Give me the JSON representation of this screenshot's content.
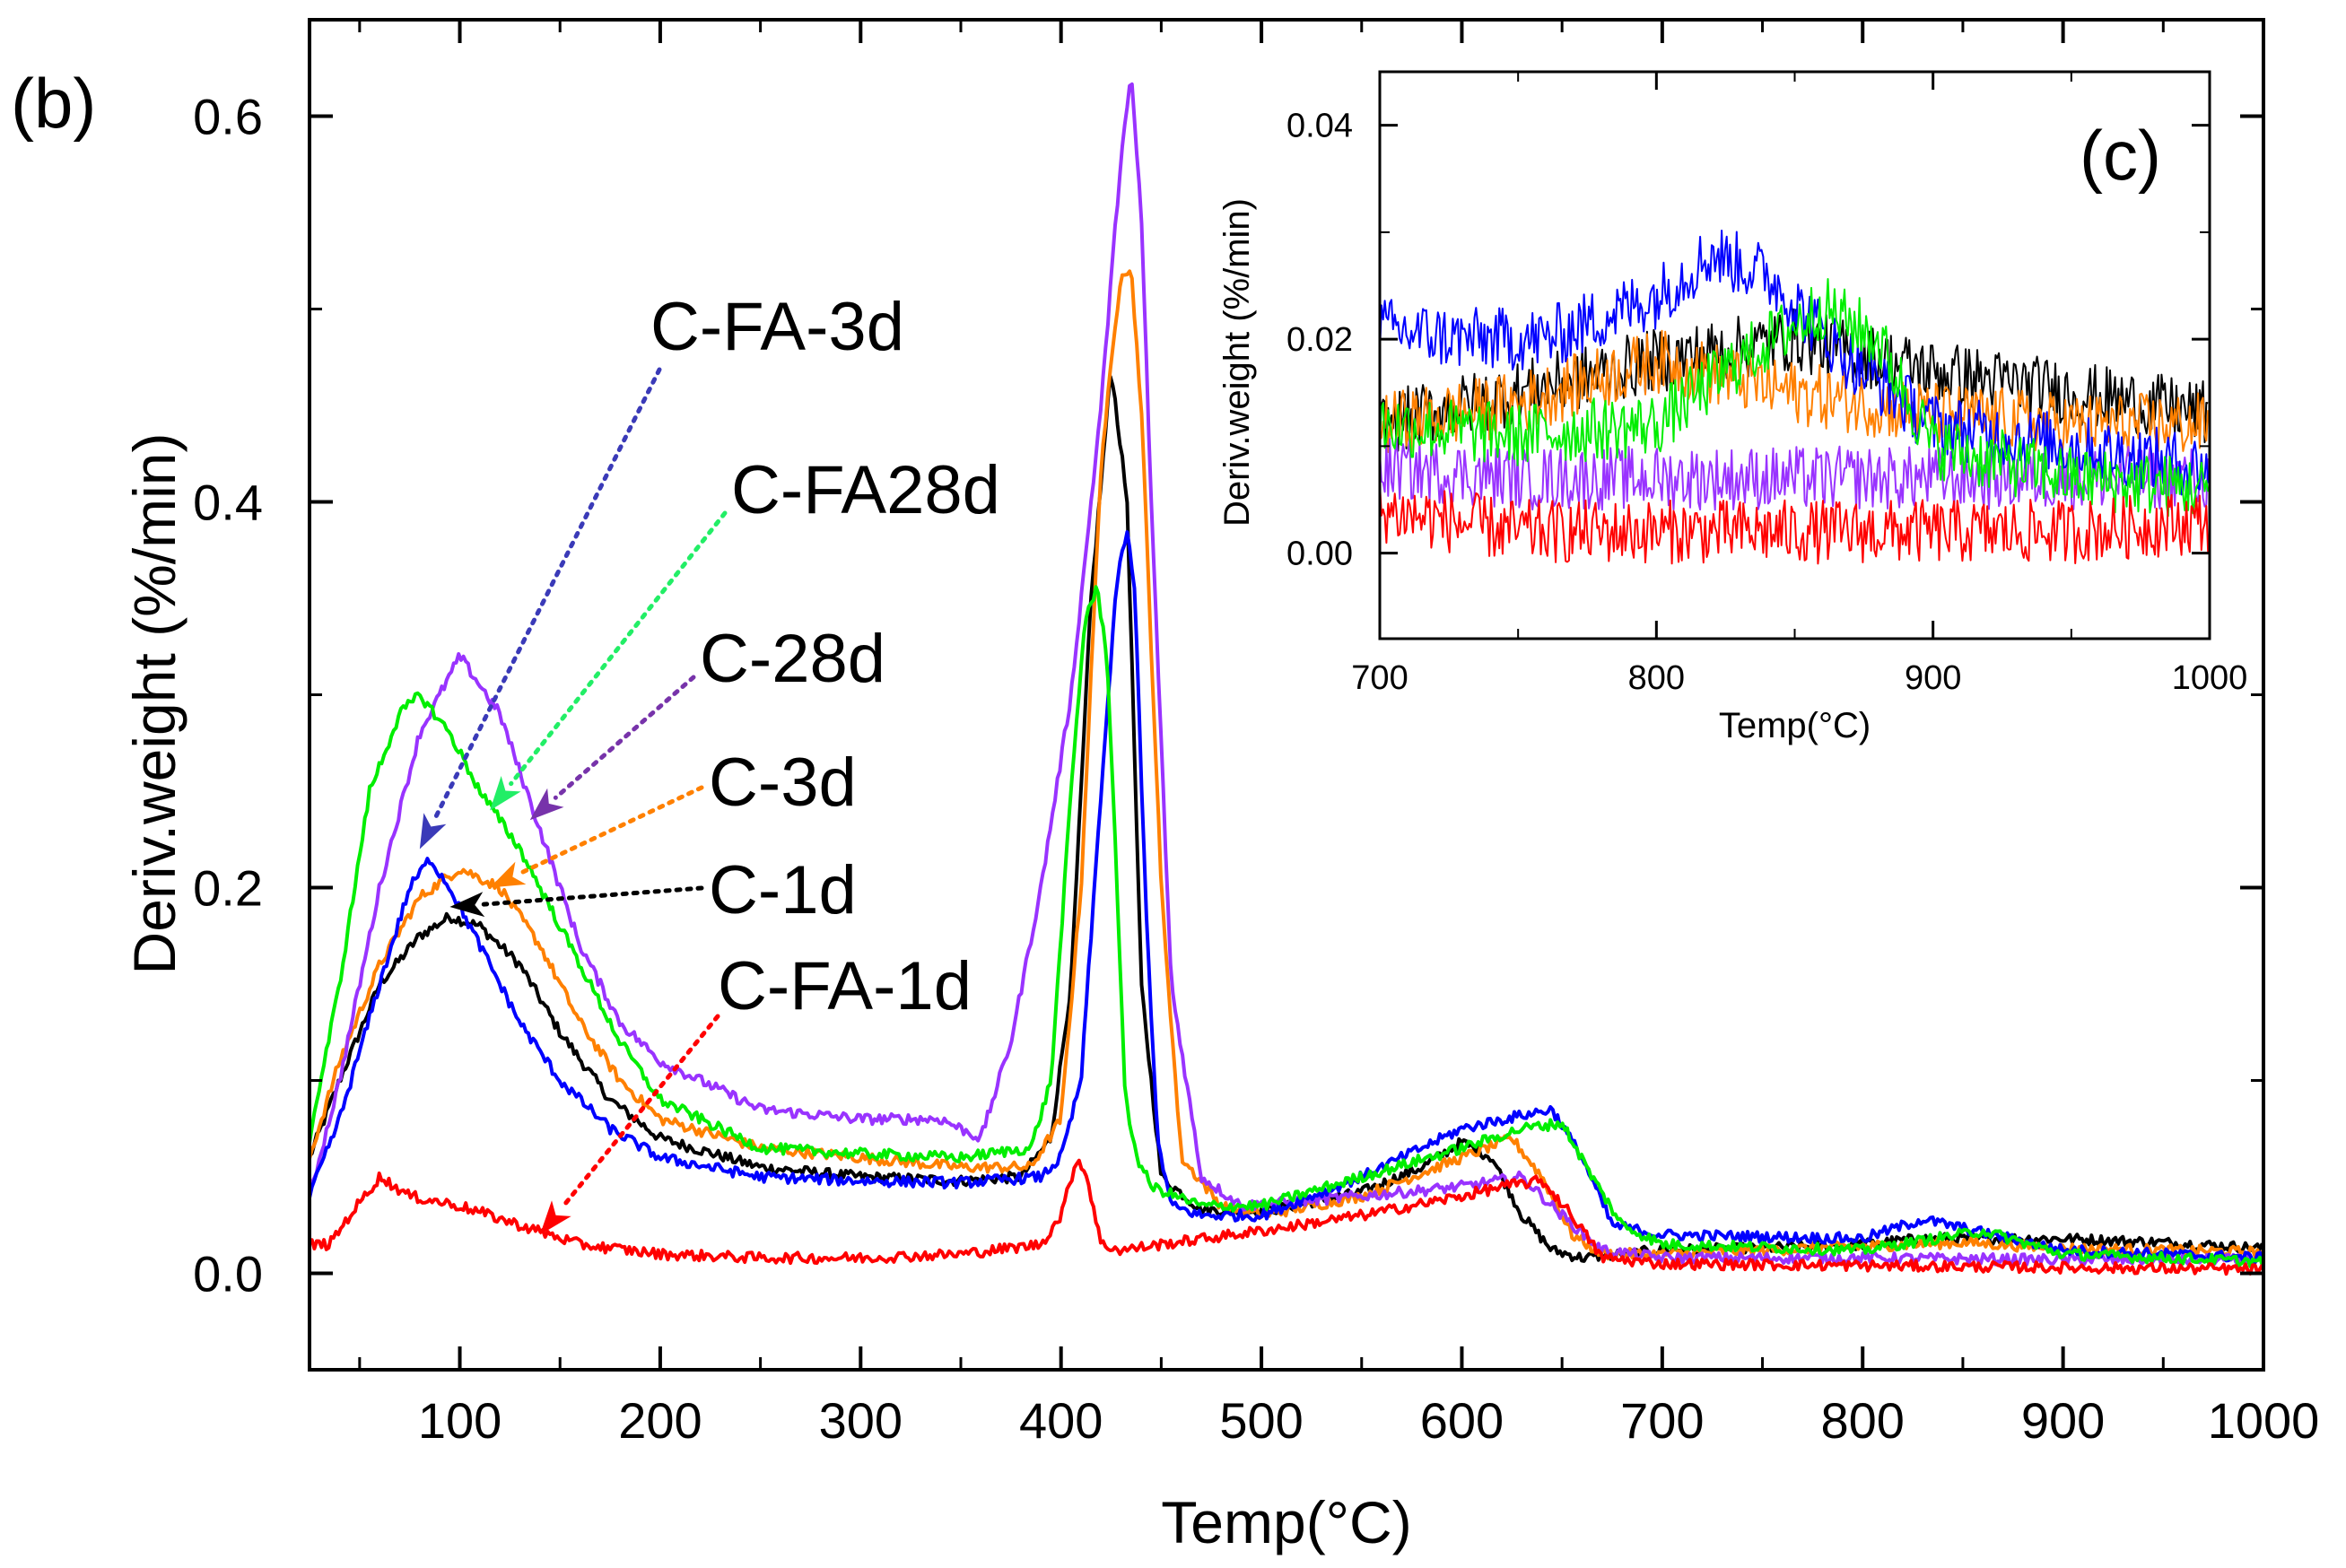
{
  "chart_data": [
    {
      "panel": "(b)",
      "type": "line",
      "xlabel": "Temp(°C)",
      "ylabel": "Deriv.weight (%/min)",
      "xlim": [
        25,
        1000
      ],
      "ylim": [
        -0.05,
        0.65
      ],
      "xticks": [
        100,
        200,
        300,
        400,
        500,
        600,
        700,
        800,
        900,
        1000
      ],
      "yticks": [
        0.0,
        0.2,
        0.4,
        0.6
      ],
      "ytick_labels": [
        "0.0",
        "0.2",
        "0.4",
        "0.6"
      ],
      "grid": false,
      "series": [
        {
          "name": "C-1d",
          "color": "#000000",
          "x": [
            25,
            40,
            60,
            80,
            95,
            110,
            130,
            150,
            175,
            200,
            250,
            300,
            350,
            380,
            395,
            405,
            415,
            425,
            433,
            440,
            450,
            470,
            500,
            550,
            580,
            600,
            615,
            630,
            645,
            660,
            680,
            700,
            750,
            800,
            830,
            900,
            950,
            1000
          ],
          "y": [
            0.06,
            0.1,
            0.15,
            0.175,
            0.185,
            0.18,
            0.16,
            0.125,
            0.09,
            0.07,
            0.055,
            0.05,
            0.048,
            0.05,
            0.07,
            0.15,
            0.35,
            0.47,
            0.4,
            0.15,
            0.05,
            0.033,
            0.032,
            0.042,
            0.055,
            0.068,
            0.06,
            0.03,
            0.012,
            0.008,
            0.01,
            0.012,
            0.013,
            0.015,
            0.018,
            0.018,
            0.016,
            0.013
          ]
        },
        {
          "name": "C-3d",
          "color": "#ff8000",
          "x": [
            25,
            40,
            60,
            80,
            100,
            120,
            140,
            160,
            180,
            200,
            250,
            300,
            350,
            385,
            400,
            410,
            420,
            430,
            435,
            440,
            450,
            460,
            480,
            500,
            550,
            600,
            625,
            640,
            655,
            670,
            700,
            750,
            800,
            850,
            900,
            950,
            1000
          ],
          "y": [
            0.06,
            0.11,
            0.16,
            0.195,
            0.21,
            0.2,
            0.17,
            0.13,
            0.1,
            0.08,
            0.065,
            0.06,
            0.055,
            0.055,
            0.08,
            0.2,
            0.42,
            0.52,
            0.52,
            0.45,
            0.2,
            0.06,
            0.035,
            0.03,
            0.04,
            0.06,
            0.07,
            0.05,
            0.02,
            0.01,
            0.01,
            0.012,
            0.014,
            0.016,
            0.013,
            0.012,
            0.011
          ]
        },
        {
          "name": "C-28d",
          "color": "#9933ff",
          "x": [
            25,
            40,
            60,
            80,
            100,
            120,
            140,
            160,
            180,
            200,
            250,
            300,
            340,
            360,
            375,
            390,
            405,
            420,
            430,
            435,
            440,
            445,
            455,
            470,
            490,
            550,
            600,
            630,
            650,
            670,
            700,
            800,
            900,
            1000
          ],
          "y": [
            0.04,
            0.1,
            0.2,
            0.28,
            0.32,
            0.29,
            0.23,
            0.17,
            0.13,
            0.11,
            0.085,
            0.08,
            0.08,
            0.07,
            0.12,
            0.2,
            0.3,
            0.45,
            0.58,
            0.62,
            0.55,
            0.4,
            0.15,
            0.05,
            0.035,
            0.04,
            0.045,
            0.05,
            0.03,
            0.012,
            0.008,
            0.008,
            0.007,
            0.007
          ]
        },
        {
          "name": "C-FA-3d",
          "color": "#0000ff",
          "x": [
            25,
            40,
            60,
            75,
            85,
            95,
            110,
            130,
            150,
            175,
            200,
            250,
            300,
            350,
            390,
            400,
            410,
            420,
            428,
            433,
            437,
            442,
            448,
            455,
            470,
            500,
            550,
            600,
            630,
            645,
            660,
            675,
            700,
            800,
            830,
            900,
            1000
          ],
          "y": [
            0.04,
            0.08,
            0.15,
            0.2,
            0.215,
            0.2,
            0.17,
            0.13,
            0.1,
            0.075,
            0.06,
            0.05,
            0.048,
            0.047,
            0.05,
            0.06,
            0.1,
            0.25,
            0.36,
            0.385,
            0.35,
            0.2,
            0.07,
            0.035,
            0.03,
            0.03,
            0.05,
            0.075,
            0.082,
            0.085,
            0.06,
            0.025,
            0.02,
            0.018,
            0.028,
            0.012,
            0.008
          ]
        },
        {
          "name": "C-FA28d",
          "color": "#00ee00",
          "x": [
            25,
            40,
            55,
            70,
            80,
            95,
            110,
            130,
            150,
            180,
            200,
            250,
            300,
            350,
            385,
            395,
            405,
            412,
            418,
            423,
            428,
            432,
            438,
            445,
            470,
            500,
            550,
            600,
            630,
            650,
            665,
            680,
            700,
            800,
            860,
            900,
            1000
          ],
          "y": [
            0.07,
            0.15,
            0.25,
            0.29,
            0.3,
            0.28,
            0.25,
            0.22,
            0.18,
            0.12,
            0.09,
            0.065,
            0.062,
            0.06,
            0.065,
            0.1,
            0.25,
            0.34,
            0.355,
            0.32,
            0.2,
            0.09,
            0.06,
            0.045,
            0.035,
            0.035,
            0.05,
            0.065,
            0.075,
            0.078,
            0.05,
            0.025,
            0.015,
            0.012,
            0.022,
            0.01,
            0.006
          ]
        },
        {
          "name": "C-FA-1d",
          "color": "#ff0000",
          "x": [
            25,
            35,
            45,
            60,
            75,
            100,
            130,
            160,
            200,
            250,
            300,
            350,
            390,
            400,
            408,
            413,
            420,
            430,
            450,
            500,
            550,
            600,
            620,
            640,
            655,
            670,
            700,
            800,
            900,
            1000
          ],
          "y": [
            0.015,
            0.015,
            0.03,
            0.05,
            0.04,
            0.035,
            0.025,
            0.015,
            0.01,
            0.008,
            0.008,
            0.01,
            0.015,
            0.03,
            0.06,
            0.05,
            0.015,
            0.012,
            0.015,
            0.022,
            0.03,
            0.04,
            0.045,
            0.048,
            0.03,
            0.008,
            0.005,
            0.004,
            0.003,
            0.002
          ]
        }
      ],
      "annotations": [
        {
          "label": "C-FA-3d",
          "color": "#3a3ab8",
          "arrow_to": [
            80,
            0.22
          ]
        },
        {
          "label": "C-FA28d",
          "color": "#22ee66",
          "arrow_to": [
            115,
            0.24
          ]
        },
        {
          "label": "C-28d",
          "color": "#7733aa",
          "arrow_to": [
            135,
            0.235
          ]
        },
        {
          "label": "C-3d",
          "color": "#ff8000",
          "arrow_to": [
            115,
            0.2
          ]
        },
        {
          "label": "C-1d",
          "color": "#000000",
          "arrow_to": [
            95,
            0.19
          ]
        },
        {
          "label": "C-FA-1d",
          "color": "#ff0000",
          "arrow_to": [
            140,
            0.02
          ]
        }
      ]
    },
    {
      "panel": "(c)",
      "type": "line",
      "xlabel": "Temp(°C)",
      "ylabel": "Deriv.weight (%/min)",
      "xlim": [
        700,
        1000
      ],
      "ylim": [
        -0.008,
        0.045
      ],
      "xticks": [
        700,
        800,
        900,
        1000
      ],
      "yticks": [
        0.0,
        0.02,
        0.04
      ],
      "ytick_labels": [
        "0.00",
        "0.02",
        "0.04"
      ],
      "grid": false,
      "series": [
        {
          "name": "C-1d",
          "color": "#000000",
          "x": [
            700,
            750,
            800,
            850,
            900,
            950,
            1000
          ],
          "y": [
            0.012,
            0.015,
            0.018,
            0.02,
            0.017,
            0.015,
            0.013
          ]
        },
        {
          "name": "C-3d",
          "color": "#ff8000",
          "x": [
            700,
            750,
            800,
            850,
            900,
            950,
            1000
          ],
          "y": [
            0.012,
            0.014,
            0.018,
            0.015,
            0.013,
            0.012,
            0.012
          ]
        },
        {
          "name": "C-28d",
          "color": "#9933ff",
          "x": [
            700,
            750,
            800,
            850,
            900,
            950,
            1000
          ],
          "y": [
            0.008,
            0.007,
            0.007,
            0.007,
            0.007,
            0.007,
            0.007
          ]
        },
        {
          "name": "C-FA-3d",
          "color": "#0000ff",
          "x": [
            700,
            730,
            760,
            800,
            820,
            840,
            870,
            900,
            950,
            1000
          ],
          "y": [
            0.021,
            0.02,
            0.02,
            0.024,
            0.028,
            0.026,
            0.018,
            0.012,
            0.01,
            0.008
          ]
        },
        {
          "name": "C-FA28d",
          "color": "#00ee00",
          "x": [
            700,
            750,
            800,
            830,
            860,
            880,
            900,
            950,
            1000
          ],
          "y": [
            0.012,
            0.011,
            0.012,
            0.018,
            0.023,
            0.02,
            0.01,
            0.007,
            0.006
          ]
        },
        {
          "name": "C-FA-1d",
          "color": "#ff0000",
          "x": [
            700,
            750,
            800,
            850,
            900,
            950,
            1000
          ],
          "y": [
            0.004,
            0.002,
            0.002,
            0.002,
            0.002,
            0.002,
            0.003
          ]
        }
      ]
    }
  ]
}
